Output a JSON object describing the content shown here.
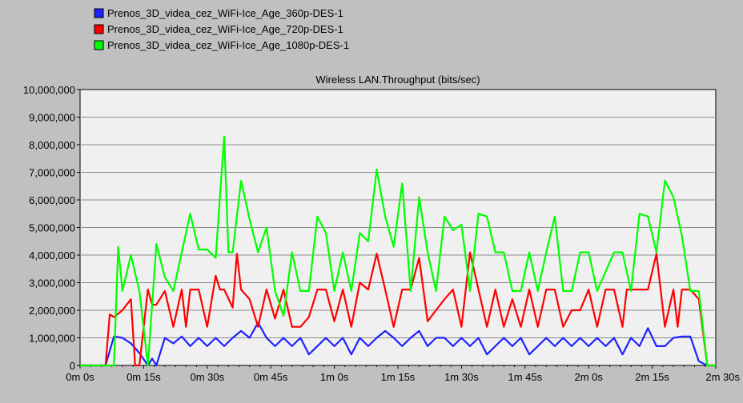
{
  "chart_data": {
    "type": "line",
    "title": "Wireless LAN.Throughput (bits/sec)",
    "xlabel": "",
    "ylabel": "",
    "xlim": [
      0,
      150
    ],
    "ylim": [
      0,
      10000000
    ],
    "grid": true,
    "legend_position": "top-left",
    "x_tick_values": [
      0,
      15,
      30,
      45,
      60,
      75,
      90,
      105,
      120,
      135,
      150
    ],
    "x_tick_labels": [
      "0m 0s",
      "0m 15s",
      "0m 30s",
      "0m 45s",
      "1m 0s",
      "1m 15s",
      "1m 30s",
      "1m 45s",
      "2m 0s",
      "2m 15s",
      "2m 30s"
    ],
    "y_tick_values": [
      0,
      1000000,
      2000000,
      3000000,
      4000000,
      5000000,
      6000000,
      7000000,
      8000000,
      9000000,
      10000000
    ],
    "y_tick_labels": [
      "0",
      "1,000,000",
      "2,000,000",
      "3,000,000",
      "4,000,000",
      "5,000,000",
      "6,000,000",
      "7,000,000",
      "8,000,000",
      "9,000,000",
      "10,000,000"
    ],
    "series": [
      {
        "name": "Prenos_3D_videa_cez_WiFi-Ice_Age_360p-DES-1",
        "color": "#2020ff",
        "x": [
          0,
          6,
          8,
          10,
          12,
          14,
          16,
          17,
          18,
          20,
          22,
          24,
          26,
          28,
          30,
          32,
          34,
          36,
          38,
          40,
          42,
          44,
          46,
          48,
          50,
          52,
          54,
          56,
          58,
          60,
          62,
          64,
          66,
          68,
          70,
          72,
          74,
          76,
          78,
          80,
          82,
          84,
          86,
          88,
          90,
          92,
          94,
          96,
          98,
          100,
          102,
          104,
          106,
          108,
          110,
          112,
          114,
          116,
          118,
          120,
          122,
          124,
          126,
          128,
          130,
          132,
          134,
          136,
          138,
          140,
          142,
          144,
          146,
          148,
          150
        ],
        "y": [
          0,
          0,
          1050000,
          1000000,
          800000,
          450000,
          0,
          250000,
          0,
          1000000,
          800000,
          1050000,
          700000,
          1000000,
          700000,
          1000000,
          700000,
          1000000,
          1250000,
          1000000,
          1550000,
          1000000,
          700000,
          1000000,
          700000,
          1000000,
          400000,
          700000,
          1000000,
          700000,
          1000000,
          400000,
          1000000,
          700000,
          1000000,
          1250000,
          1000000,
          700000,
          1000000,
          1250000,
          700000,
          1000000,
          1000000,
          700000,
          1000000,
          700000,
          1000000,
          400000,
          700000,
          1000000,
          700000,
          1000000,
          400000,
          700000,
          1000000,
          700000,
          1000000,
          700000,
          1000000,
          700000,
          1000000,
          700000,
          1000000,
          400000,
          1000000,
          700000,
          1350000,
          700000,
          700000,
          1000000,
          1050000,
          1050000,
          150000,
          0,
          0
        ]
      },
      {
        "name": "Prenos_3D_videa_cez_WiFi-Ice_Age_720p-DES-1",
        "color": "#ff0000",
        "x": [
          0,
          6,
          7,
          8,
          10,
          12,
          13,
          14,
          16,
          17,
          18,
          20,
          22,
          24,
          25,
          26,
          28,
          30,
          32,
          33,
          34,
          36,
          37,
          38,
          40,
          42,
          44,
          46,
          48,
          50,
          52,
          54,
          56,
          58,
          60,
          62,
          64,
          66,
          68,
          70,
          72,
          74,
          76,
          78,
          80,
          82,
          84,
          86,
          88,
          90,
          92,
          94,
          96,
          98,
          100,
          102,
          104,
          106,
          108,
          110,
          112,
          114,
          116,
          118,
          120,
          122,
          124,
          126,
          128,
          129,
          130,
          132,
          134,
          136,
          138,
          140,
          141,
          142,
          144,
          146,
          148,
          150
        ],
        "y": [
          0,
          0,
          1850000,
          1750000,
          2000000,
          2400000,
          0,
          0,
          2750000,
          2200000,
          2200000,
          2700000,
          1400000,
          2750000,
          1400000,
          2750000,
          2750000,
          1400000,
          3250000,
          2750000,
          2750000,
          2100000,
          4050000,
          2750000,
          2400000,
          1400000,
          2750000,
          1700000,
          2750000,
          1400000,
          1400000,
          1750000,
          2750000,
          2750000,
          1600000,
          2750000,
          1400000,
          3000000,
          2750000,
          4050000,
          2750000,
          1400000,
          2750000,
          2750000,
          3900000,
          1600000,
          2000000,
          2400000,
          2750000,
          1400000,
          4100000,
          2750000,
          1400000,
          2750000,
          1400000,
          2400000,
          1400000,
          2750000,
          1400000,
          2750000,
          2750000,
          1400000,
          2000000,
          2000000,
          2750000,
          1400000,
          2750000,
          2750000,
          1400000,
          2750000,
          2750000,
          2750000,
          2750000,
          4050000,
          1400000,
          2750000,
          1400000,
          2750000,
          2750000,
          2400000,
          0,
          0
        ]
      },
      {
        "name": "Prenos_3D_videa_cez_WiFi-Ice_Age_1080p-DES-1",
        "color": "#00ff00",
        "x": [
          0,
          8,
          9,
          10,
          12,
          14,
          16,
          18,
          20,
          22,
          24,
          26,
          28,
          30,
          32,
          34,
          35,
          36,
          38,
          40,
          42,
          44,
          46,
          48,
          50,
          52,
          54,
          56,
          58,
          60,
          62,
          64,
          66,
          68,
          70,
          72,
          74,
          76,
          78,
          80,
          82,
          84,
          86,
          88,
          90,
          92,
          94,
          96,
          98,
          100,
          102,
          104,
          106,
          108,
          110,
          112,
          114,
          116,
          118,
          120,
          122,
          124,
          126,
          128,
          130,
          132,
          134,
          136,
          138,
          140,
          142,
          144,
          146,
          148,
          150
        ],
        "y": [
          0,
          0,
          4300000,
          2700000,
          4000000,
          2700000,
          0,
          4400000,
          3200000,
          2700000,
          4100000,
          5500000,
          4200000,
          4200000,
          3900000,
          8300000,
          4100000,
          4100000,
          6700000,
          5300000,
          4100000,
          5000000,
          2700000,
          1800000,
          4100000,
          2700000,
          2700000,
          5400000,
          4800000,
          2700000,
          4100000,
          2700000,
          4800000,
          4500000,
          7100000,
          5400000,
          4300000,
          6600000,
          2700000,
          6100000,
          4100000,
          2700000,
          5400000,
          4900000,
          5100000,
          2700000,
          5500000,
          5400000,
          4100000,
          4100000,
          2700000,
          2700000,
          4100000,
          2700000,
          4100000,
          5400000,
          2700000,
          2700000,
          4100000,
          4100000,
          2700000,
          3400000,
          4100000,
          4100000,
          2700000,
          5500000,
          5400000,
          4100000,
          6700000,
          6100000,
          4700000,
          2700000,
          2700000,
          0,
          0
        ]
      }
    ]
  }
}
